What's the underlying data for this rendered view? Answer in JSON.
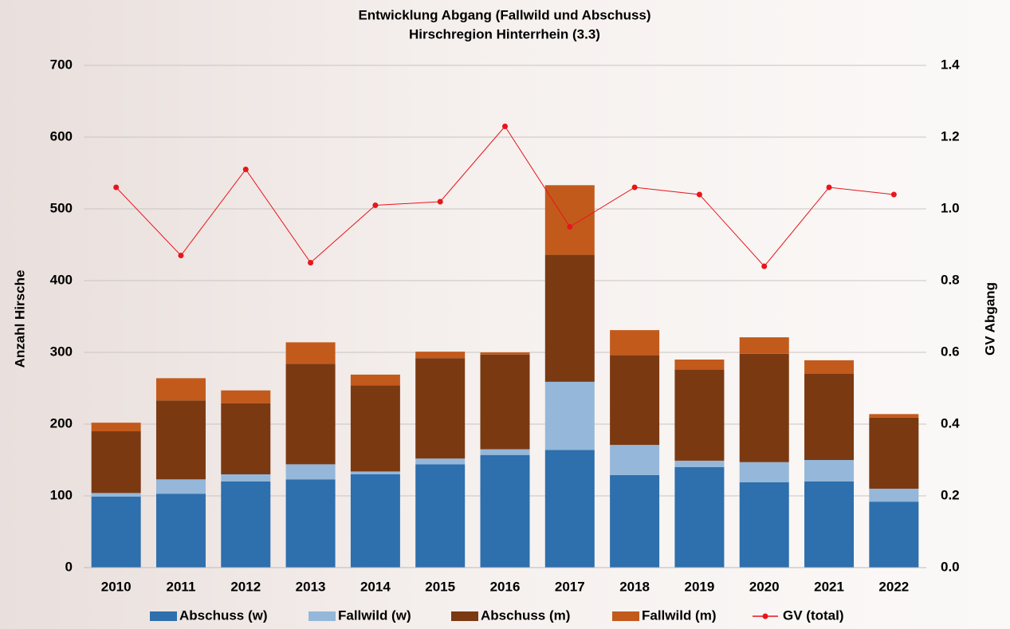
{
  "chart_data": {
    "type": "stacked-bar-line",
    "title": "Entwicklung Abgang (Fallwild und Abschuss)",
    "subtitle": "Hirschregion Hinterrhein (3.3)",
    "y_label": "Anzahl Hirsche",
    "y2_label": "GV Abgang",
    "categories": [
      "2010",
      "2011",
      "2012",
      "2013",
      "2014",
      "2015",
      "2016",
      "2017",
      "2018",
      "2019",
      "2020",
      "2021",
      "2022"
    ],
    "series": [
      {
        "name": "Abschuss (w)",
        "color": "#2e6fad",
        "type": "bar",
        "values": [
          99,
          103,
          120,
          123,
          130,
          144,
          157,
          164,
          129,
          140,
          119,
          120,
          92
        ]
      },
      {
        "name": "Fallwild (w)",
        "color": "#95b7d9",
        "type": "bar",
        "values": [
          5,
          20,
          10,
          21,
          4,
          8,
          8,
          95,
          42,
          9,
          28,
          30,
          18
        ]
      },
      {
        "name": "Abschuss (m)",
        "color": "#7b3912",
        "type": "bar",
        "values": [
          86,
          110,
          99,
          140,
          120,
          140,
          132,
          177,
          125,
          127,
          151,
          120,
          99
        ]
      },
      {
        "name": "Fallwild (m)",
        "color": "#c25a1c",
        "type": "bar",
        "values": [
          12,
          31,
          18,
          30,
          15,
          9,
          3,
          97,
          35,
          14,
          23,
          19,
          5
        ]
      },
      {
        "name": "GV (total)",
        "color": "#e8151b",
        "type": "line",
        "axis": "y2",
        "values": [
          1.06,
          0.87,
          1.11,
          0.85,
          1.01,
          1.02,
          1.23,
          0.95,
          1.06,
          1.04,
          0.84,
          1.06,
          1.04
        ]
      }
    ],
    "ylim": [
      0,
      700
    ],
    "yticks": [
      0,
      100,
      200,
      300,
      400,
      500,
      600,
      700
    ],
    "y2lim": [
      0,
      1.4
    ],
    "y2ticks": [
      {
        "value": 0,
        "label": "0.0"
      },
      0.2,
      0.4,
      0.6,
      0.8,
      {
        "value": 1,
        "label": "1.0"
      },
      1.2,
      1.4
    ],
    "grid": true,
    "legend": "bottom"
  }
}
